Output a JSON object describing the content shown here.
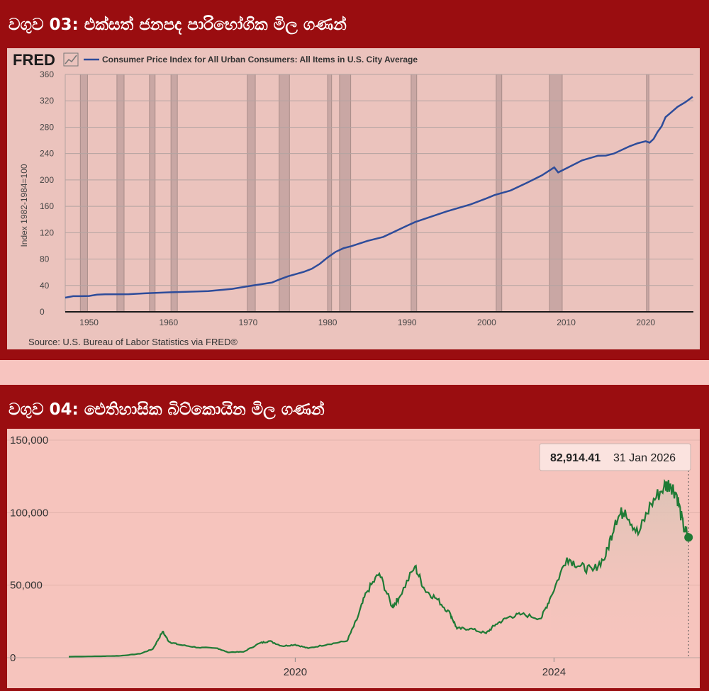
{
  "cpi_panel": {
    "title": "වගුව 03: එක්සත් ජනපද පාරිභෝගික මිල ගණන්",
    "logo": "FRED",
    "source": "Source: U.S. Bureau of Labor Statistics via FRED®",
    "colors": {
      "line": "#2e4c9a",
      "recession": "#c9a7a4",
      "grid": "#b3a3a1"
    }
  },
  "btc_panel": {
    "title": "වගුව 04: ඓතිහාසික බිට්කොයින මිල ගණන්",
    "tooltip_value": "82,914.41",
    "tooltip_date": "31 Jan 2026",
    "colors": {
      "line": "#1f7a35",
      "dot": "#1f7a35"
    }
  },
  "chart_data": [
    {
      "type": "line",
      "title": "",
      "legend": [
        "Consumer Price Index for All Urban Consumers: All Items in U.S. City Average"
      ],
      "ylabel": "Index 1982-1984=100",
      "xlabel": "",
      "xlim": [
        1947,
        2026
      ],
      "ylim": [
        0,
        360
      ],
      "yticks": [
        0,
        40,
        80,
        120,
        160,
        200,
        240,
        280,
        320,
        360
      ],
      "xticks": [
        1950,
        1960,
        1970,
        1980,
        1990,
        2000,
        2010,
        2020
      ],
      "recessions": [
        [
          1948.9,
          1949.8
        ],
        [
          1953.5,
          1954.4
        ],
        [
          1957.6,
          1958.3
        ],
        [
          1960.3,
          1961.1
        ],
        [
          1969.9,
          1970.9
        ],
        [
          1973.9,
          1975.2
        ],
        [
          1980.0,
          1980.5
        ],
        [
          1981.5,
          1982.9
        ],
        [
          1990.5,
          1991.2
        ],
        [
          2001.2,
          2001.9
        ],
        [
          2007.9,
          2009.5
        ],
        [
          2020.1,
          2020.4
        ]
      ],
      "series": [
        {
          "name": "CPIAUCSL",
          "x": [
            1947,
            1948,
            1949,
            1950,
            1951,
            1952,
            1955,
            1957,
            1960,
            1965,
            1968,
            1970,
            1973,
            1974,
            1975,
            1977,
            1978,
            1979,
            1980,
            1981,
            1982,
            1983,
            1985,
            1987,
            1990,
            1991,
            1995,
            1998,
            2000,
            2001,
            2003,
            2005,
            2007,
            2008.5,
            2009,
            2010,
            2012,
            2014,
            2015,
            2016,
            2018,
            2019,
            2020,
            2020.5,
            2021,
            2021.5,
            2022,
            2022.5,
            2023,
            2024,
            2025,
            2025.9
          ],
          "values": [
            21.5,
            23.7,
            23.8,
            24.1,
            26.0,
            26.5,
            26.8,
            28.1,
            29.6,
            31.5,
            34.8,
            38.8,
            44.4,
            49.3,
            53.8,
            60.6,
            65.2,
            72.6,
            82.4,
            90.9,
            96.5,
            99.6,
            107.6,
            113.6,
            130.7,
            136.2,
            152.4,
            163.0,
            172.2,
            177.1,
            184.0,
            195.3,
            207.3,
            219.0,
            211.4,
            217.5,
            229.6,
            236.7,
            237.0,
            240.0,
            251.1,
            255.7,
            258.7,
            256.5,
            262.2,
            273.0,
            281.1,
            295.2,
            300.5,
            310.8,
            318.0,
            326.0
          ]
        }
      ]
    },
    {
      "type": "line",
      "title": "",
      "xlabel": "",
      "ylabel": "",
      "xlim": [
        2016.5,
        2026.1
      ],
      "ylim": [
        0,
        150000
      ],
      "yticks": [
        0,
        50000,
        100000,
        150000
      ],
      "ytick_labels": [
        "0",
        "50,000",
        "100,000",
        "150,000"
      ],
      "xticks": [
        2020,
        2024
      ],
      "series": [
        {
          "name": "Bitcoin price (USD)",
          "x": [
            2016.5,
            2017.0,
            2017.3,
            2017.6,
            2017.8,
            2017.95,
            2018.05,
            2018.2,
            2018.5,
            2018.8,
            2018.95,
            2019.2,
            2019.45,
            2019.6,
            2019.8,
            2020.0,
            2020.2,
            2020.5,
            2020.8,
            2020.95,
            2021.1,
            2021.3,
            2021.5,
            2021.6,
            2021.85,
            2022.0,
            2022.2,
            2022.4,
            2022.5,
            2022.7,
            2022.95,
            2023.1,
            2023.3,
            2023.5,
            2023.8,
            2023.95,
            2024.2,
            2024.4,
            2024.6,
            2024.8,
            2024.95,
            2025.1,
            2025.3,
            2025.5,
            2025.7,
            2025.8,
            2025.9,
            2026.0,
            2026.08
          ],
          "values": [
            700,
            1000,
            1300,
            2700,
            6000,
            18000,
            11000,
            9000,
            7000,
            6500,
            3800,
            4000,
            10000,
            11500,
            8000,
            9000,
            6500,
            9200,
            11500,
            26000,
            45000,
            58000,
            35000,
            41000,
            63000,
            47000,
            40000,
            30000,
            20000,
            20000,
            16800,
            23000,
            28000,
            30000,
            27000,
            42000,
            69000,
            63000,
            60000,
            70000,
            95000,
            102000,
            85000,
            106000,
            118000,
            120000,
            112000,
            90000,
            82914
          ]
        }
      ]
    }
  ]
}
